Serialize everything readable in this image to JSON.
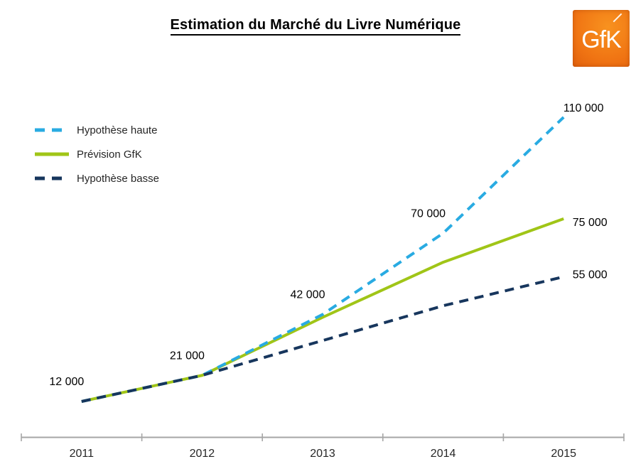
{
  "logo": {
    "text": "GfK",
    "color": "#EE6F15"
  },
  "axis": {
    "color": "#A6A6A6",
    "label_color": "#262626"
  },
  "chart_data": {
    "type": "line",
    "title": "Estimation du Marché du Livre Numérique",
    "categories": [
      "2011",
      "2012",
      "2013",
      "2014",
      "2015"
    ],
    "series": [
      {
        "name": "Hypothèse haute",
        "color": "#29ABE2",
        "line_style": "dashed",
        "values": [
          12000,
          21000,
          42000,
          70000,
          110000
        ],
        "point_labels": [
          "12 000",
          "21 000",
          "42 000",
          "70 000",
          "110 000"
        ]
      },
      {
        "name": "Prévision GfK",
        "color": "#A0C517",
        "line_style": "solid",
        "values": [
          12000,
          21000,
          41000,
          60000,
          75000
        ],
        "end_label": "75 000"
      },
      {
        "name": "Hypothèse basse",
        "color": "#17365D",
        "line_style": "dashed",
        "values": [
          12000,
          21000,
          33000,
          45000,
          55000
        ],
        "end_label": "55 000"
      }
    ],
    "xlabel": "",
    "ylabel": "",
    "ylim": [
      12000,
      110000
    ],
    "grid": false,
    "y_axis_visible": false,
    "legend_position": "upper-left"
  }
}
